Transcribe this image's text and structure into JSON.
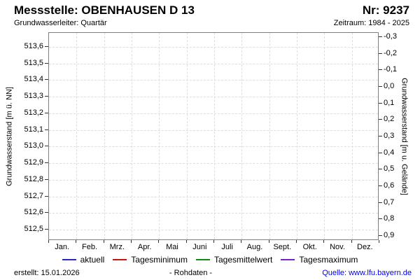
{
  "header": {
    "title": "Messstelle: OBENHAUSEN D 13",
    "station_number": "Nr: 9237",
    "aquifer": "Grundwasserleiter: Quartär",
    "period": "Zeitraum: 1984 - 2025"
  },
  "chart_data": {
    "type": "line",
    "title": "",
    "x_categories": [
      "Jan.",
      "Feb.",
      "Mrz.",
      "Apr.",
      "Mai",
      "Juni",
      "Juli",
      "Aug.",
      "Sept.",
      "Okt.",
      "Nov.",
      "Dez."
    ],
    "left_axis": {
      "label": "Grundwasserstand [m ü. NN]",
      "tick_labels": [
        "513,6",
        "513,5",
        "513,4",
        "513,3",
        "513,2",
        "513,1",
        "513,0",
        "512,9",
        "512,8",
        "512,7",
        "512,6",
        "512,5"
      ],
      "tick_values": [
        513.6,
        513.5,
        513.4,
        513.3,
        513.2,
        513.1,
        513.0,
        512.9,
        512.8,
        512.7,
        512.6,
        512.5
      ],
      "range": [
        512.44,
        513.68
      ]
    },
    "right_axis": {
      "label": "Grundwasserstand [m u. Gelände]",
      "tick_labels": [
        "-0,3",
        "-0,2",
        "-0,1",
        "0,0",
        "0,1",
        "0,2",
        "0,3",
        "0,4",
        "0,5",
        "0,6",
        "0,7",
        "0,8",
        "0,9"
      ],
      "tick_values": [
        -0.3,
        -0.2,
        -0.1,
        0.0,
        0.1,
        0.2,
        0.3,
        0.4,
        0.5,
        0.6,
        0.7,
        0.8,
        0.9
      ],
      "range": [
        -0.32,
        0.93
      ]
    },
    "grid": "dashed, horizontal at left-axis ticks, vertical at month boundaries",
    "legend_position": "bottom center",
    "series": [
      {
        "name": "aktuell",
        "color": "#2828c8",
        "values": []
      },
      {
        "name": "Tagesminimum",
        "color": "#cc1111",
        "values": []
      },
      {
        "name": "Tagesmittelwert",
        "color": "#118811",
        "values": []
      },
      {
        "name": "Tagesmaximum",
        "color": "#7722cc",
        "values": []
      }
    ]
  },
  "legend": {
    "items": [
      {
        "label": "aktuell",
        "color": "#2828c8"
      },
      {
        "label": "Tagesminimum",
        "color": "#cc1111"
      },
      {
        "label": "Tagesmittelwert",
        "color": "#118811"
      },
      {
        "label": "Tagesmaximum",
        "color": "#7722cc"
      }
    ]
  },
  "footer": {
    "created": "erstellt: 15.01.2026",
    "data_type": "- Rohdaten -",
    "source": "Quelle: www.lfu.bayern.de",
    "source_color": "#0000ee"
  }
}
